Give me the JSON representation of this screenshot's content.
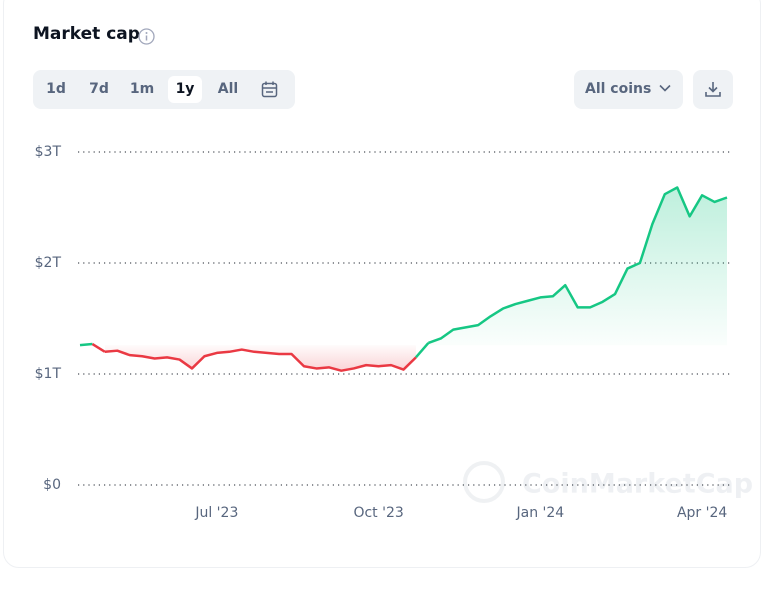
{
  "header": {
    "title": "Market cap"
  },
  "controls": {
    "ranges": [
      "1d",
      "7d",
      "1m",
      "1y",
      "All"
    ],
    "active_range": 3,
    "coin_filter": "All coins"
  },
  "watermark": "CoinMarketCap",
  "chart_data": {
    "type": "line",
    "categories": [
      null,
      null,
      null,
      null,
      null,
      null,
      null,
      null,
      null,
      null,
      null,
      "Jul '23",
      null,
      null,
      null,
      null,
      null,
      null,
      null,
      null,
      null,
      null,
      null,
      null,
      "Oct '23",
      null,
      null,
      null,
      null,
      null,
      null,
      null,
      null,
      null,
      null,
      null,
      null,
      "Jan '24",
      null,
      null,
      null,
      null,
      null,
      null,
      null,
      null,
      null,
      null,
      null,
      null,
      "Apr '24",
      null,
      null
    ],
    "values": [
      1.26,
      1.27,
      1.2,
      1.21,
      1.17,
      1.16,
      1.14,
      1.15,
      1.13,
      1.05,
      1.16,
      1.19,
      1.2,
      1.22,
      1.2,
      1.19,
      1.18,
      1.18,
      1.07,
      1.05,
      1.06,
      1.03,
      1.05,
      1.08,
      1.07,
      1.08,
      1.04,
      1.15,
      1.28,
      1.32,
      1.4,
      1.42,
      1.44,
      1.52,
      1.59,
      1.63,
      1.66,
      1.69,
      1.7,
      1.8,
      1.6,
      1.6,
      1.65,
      1.72,
      1.95,
      2.0,
      2.35,
      2.62,
      2.68,
      2.42,
      2.61,
      2.55,
      2.59
    ],
    "up_color": "#16c784",
    "down_color": "#ea3943",
    "ylim": [
      0,
      3
    ],
    "yticks": [
      {
        "value": 0,
        "label": "$0"
      },
      {
        "value": 1,
        "label": "$1T"
      },
      {
        "value": 2,
        "label": "$2T"
      },
      {
        "value": 3,
        "label": "$3T"
      }
    ],
    "grid": true
  }
}
